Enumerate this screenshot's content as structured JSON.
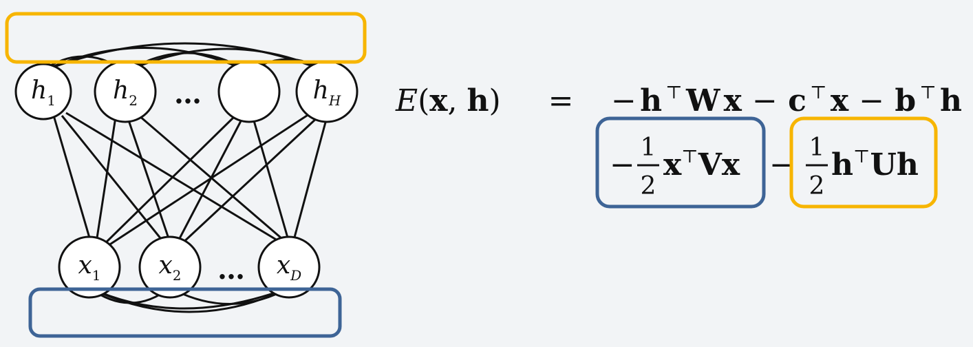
{
  "colors": {
    "background": "#f2f4f6",
    "ink": "#111111",
    "visible_highlight": "#3e6496",
    "hidden_highlight": "#f7b500"
  },
  "graph": {
    "hidden_units": [
      {
        "var": "h",
        "sub": "1"
      },
      {
        "var": "h",
        "sub": "2"
      },
      {
        "var": "",
        "sub": ""
      },
      {
        "var": "h",
        "sub": "H"
      }
    ],
    "hidden_ellipsis": "…",
    "visible_units": [
      {
        "var": "x",
        "sub": "1"
      },
      {
        "var": "x",
        "sub": "2"
      },
      {
        "var": "x",
        "sub": "D"
      }
    ],
    "visible_ellipsis": "…"
  },
  "equation": {
    "lhs_func": "E",
    "lhs_open": "(",
    "lhs_x": "x",
    "lhs_comma": ", ",
    "lhs_h": "h",
    "lhs_close": ")",
    "equals": "=",
    "line1": {
      "m1": "−",
      "h": "h",
      "t1": "⊤",
      "W": "W",
      "x1": "x",
      "m2": "−",
      "c": "c",
      "t2": "⊤",
      "x2": "x",
      "m3": "−",
      "b": "b",
      "t3": "⊤",
      "h2": "h"
    },
    "term_v": {
      "minus": "−",
      "num": "1",
      "den": "2",
      "x": "x",
      "t": "⊤",
      "V": "V",
      "x2": "x"
    },
    "between_minus": "−",
    "term_u": {
      "num": "1",
      "den": "2",
      "h": "h",
      "t": "⊤",
      "U": "U",
      "h2": "h"
    }
  }
}
